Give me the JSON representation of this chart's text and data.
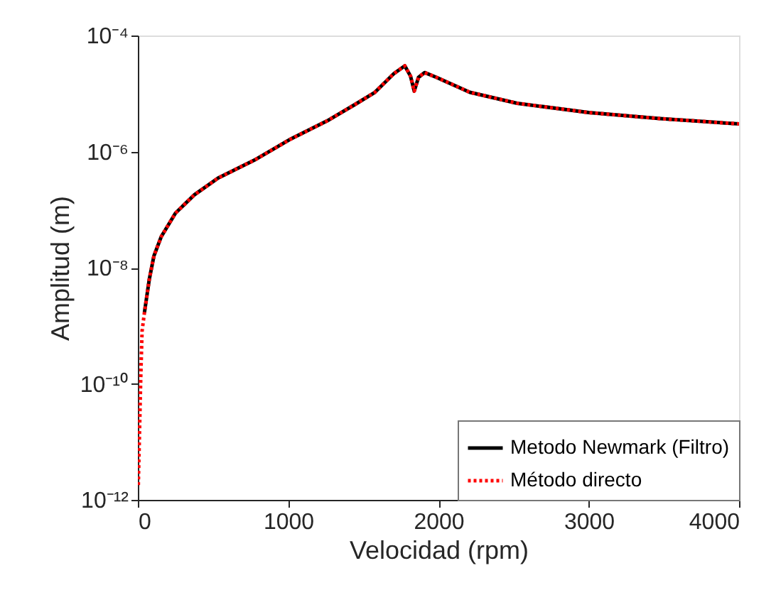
{
  "chart_data": {
    "type": "line",
    "xlabel": "Velocidad (rpm)",
    "ylabel": "Amplitud (m)",
    "series": [
      {
        "name": "Metodo Newmark (Filtro)",
        "color": "#000000",
        "line_style": "solid",
        "x": [
          44,
          76,
          107,
          155,
          250,
          376,
          534,
          787,
          1008,
          1261,
          1450,
          1577,
          1703,
          1776,
          1814,
          1839,
          1867,
          1908,
          1987,
          2209,
          2524,
          3000,
          3473,
          4000
        ],
        "values": [
          1.7e-09,
          6.3e-09,
          1.6e-08,
          3.4e-08,
          8.7e-08,
          1.8e-07,
          3.5e-07,
          7.4e-07,
          1.6e-06,
          3.4e-06,
          6.6e-06,
          1.05e-05,
          2.2e-05,
          3e-05,
          2e-05,
          1.1e-05,
          1.9e-05,
          2.3e-05,
          1.9e-05,
          1.05e-05,
          6.8e-06,
          4.7e-06,
          3.7e-06,
          3e-06
        ]
      },
      {
        "name": "Método directo",
        "color": "#ff0000",
        "line_style": "dotted",
        "x": [
          3,
          12,
          19,
          28,
          44,
          76,
          107,
          155,
          250,
          376,
          534,
          787,
          1008,
          1261,
          1450,
          1577,
          1703,
          1776,
          1814,
          1839,
          1867,
          1908,
          1987,
          2209,
          2524,
          3000,
          3473,
          4000
        ],
        "values": [
          1.8e-12,
          1.9e-11,
          1.2e-10,
          8.1e-10,
          1.7e-09,
          6.3e-09,
          1.6e-08,
          3.4e-08,
          8.7e-08,
          1.8e-07,
          3.5e-07,
          7.4e-07,
          1.6e-06,
          3.4e-06,
          6.6e-06,
          1.05e-05,
          2.2e-05,
          3e-05,
          2e-05,
          1.1e-05,
          1.9e-05,
          2.3e-05,
          1.9e-05,
          1.05e-05,
          6.8e-06,
          4.7e-06,
          3.7e-06,
          3e-06
        ]
      }
    ],
    "xlim": [
      0,
      4000
    ],
    "xticks": [
      0,
      1000,
      2000,
      3000,
      4000
    ],
    "ylim": [
      1e-12,
      0.0001
    ],
    "log": true,
    "yticks": [
      {
        "value": 1e-12,
        "label": "10⁻¹²"
      },
      {
        "value": 1e-10,
        "label": "10⁻¹⁰"
      },
      {
        "value": 1e-08,
        "label": "10⁻⁸"
      },
      {
        "value": 1e-06,
        "label": "10⁻⁶"
      },
      {
        "value": 0.0001,
        "label": "10⁻⁴"
      }
    ],
    "grid": false,
    "legend": "bottom right"
  }
}
